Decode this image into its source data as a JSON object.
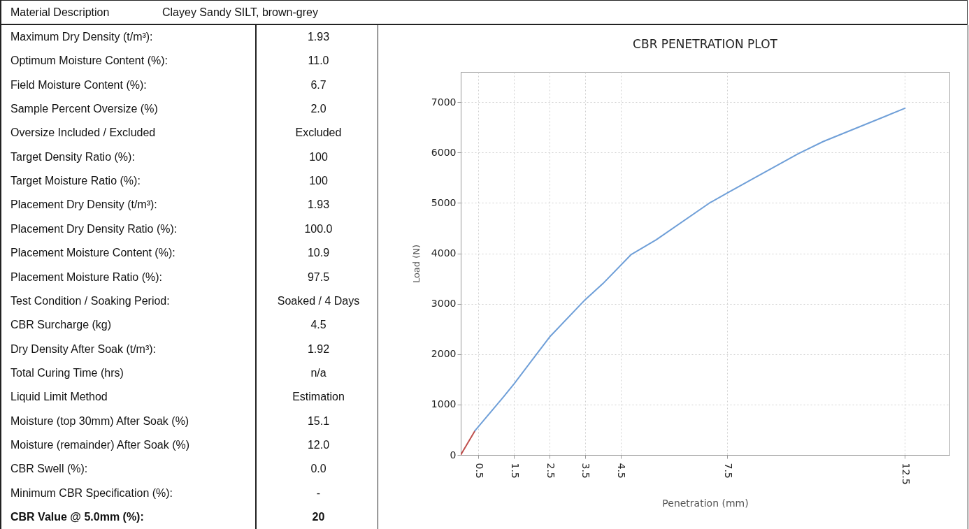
{
  "chart_data": [
    {
      "type": "other",
      "annotations": [
        "Material Description",
        "Clayey Sandy SILT, brown-grey",
        "Maximum Dry Density (t/m³):",
        "1.93",
        "Optimum Moisture Content (%):",
        "11.0",
        "Field Moisture Content (%):",
        "6.7",
        "Sample Percent Oversize  (%)",
        "2.0",
        "Oversize Included / Excluded",
        "Excluded",
        "Target Density Ratio (%):",
        "100",
        "Target Moisture Ratio (%):",
        "100",
        "Placement Dry Density (t/m³):",
        "1.93",
        "Placement Dry Density Ratio (%):",
        "100.0",
        "Placement Moisture Content (%):",
        "10.9",
        "Placement Moisture Ratio (%):",
        "97.5",
        "Test Condition / Soaking Period:",
        "Soaked / 4 Days",
        "CBR Surcharge (kg)",
        "4.5",
        "Dry Density After Soak (t/m³):",
        "1.92",
        "Total Curing Time (hrs)",
        "n/a",
        "Liquid Limit Method",
        "Estimation",
        "Moisture (top 30mm) After Soak (%)",
        "15.1",
        "Moisture (remainder) After Soak (%)",
        "12.0",
        "CBR Swell (%):",
        "0.0",
        "Minimum CBR Specification (%):",
        "-",
        "CBR Value @ 5.0mm (%):",
        "20"
      ]
    },
    {
      "type": "line",
      "title": "CBR PENETRATION PLOT",
      "xlabel": "Penetration (mm)",
      "ylabel": "Load (N)",
      "xlim": [
        0,
        13.75
      ],
      "ylim": [
        0,
        7600
      ],
      "xticks": [
        0.5,
        1.5,
        2.5,
        3.5,
        4.5,
        7.5,
        12.5
      ],
      "yticks": [
        0,
        1000,
        2000,
        3000,
        4000,
        5000,
        6000,
        7000
      ],
      "grid": true,
      "series": [
        {
          "color": "#c0504d",
          "x": [
            0,
            0.4
          ],
          "values": [
            0,
            480
          ]
        },
        {
          "color": "#6f9fd8",
          "x": [
            0.4,
            1.2,
            1.5,
            2.5,
            3.5,
            4.0,
            4.8,
            5.5,
            7.0,
            7.5,
            9.5,
            10.2,
            12.5
          ],
          "values": [
            480,
            1150,
            1410,
            2340,
            3080,
            3400,
            3980,
            4270,
            5000,
            5200,
            5980,
            6220,
            6880
          ]
        }
      ]
    }
  ]
}
